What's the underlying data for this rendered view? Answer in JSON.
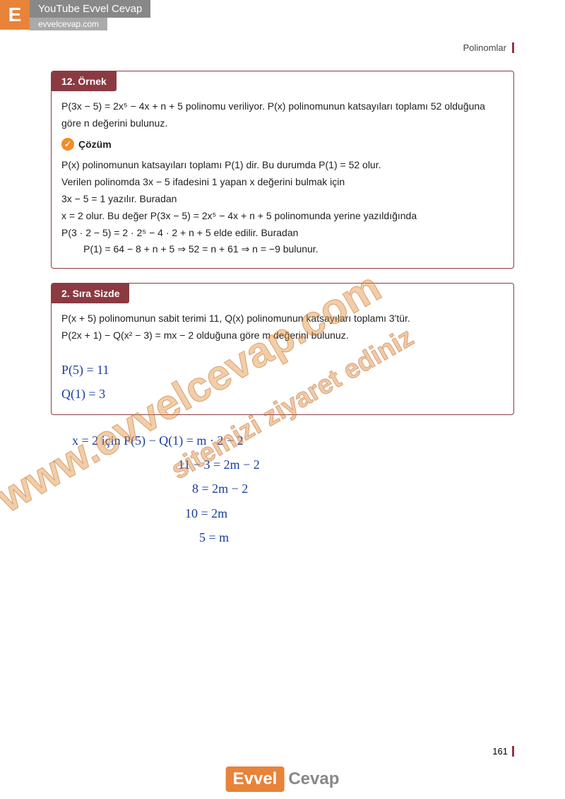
{
  "banner": {
    "logo": "E",
    "title": "YouTube Evvel Cevap",
    "site": "evvelcevap.com"
  },
  "header": {
    "chapter": "Polinomlar"
  },
  "example": {
    "label": "12. Örnek",
    "problem": "P(3x − 5) = 2x⁵ − 4x + n + 5 polinomu veriliyor. P(x) polinomunun katsayıları toplamı 52 olduğuna göre n değerini bulunuz.",
    "solution_label": "Çözüm",
    "lines": [
      "P(x) polinomunun katsayıları toplamı P(1) dir. Bu durumda P(1) = 52 olur.",
      "Verilen polinomda 3x − 5 ifadesini 1 yapan x değerini bulmak için",
      "3x − 5 = 1 yazılır. Buradan",
      "x = 2 olur. Bu değer P(3x − 5) = 2x⁵ − 4x + n + 5 polinomunda yerine yazıldığında",
      "P(3 · 2 − 5) = 2 · 2⁵ − 4 · 2 + n + 5 elde edilir. Buradan",
      "        P(1) = 64 − 8 + n + 5 ⇒ 52 = n + 61 ⇒ n = −9 bulunur."
    ]
  },
  "exercise": {
    "label": "2. Sıra Sizde",
    "problem1": "P(x + 5) polinomunun sabit terimi 11, Q(x) polinomunun katsayıları toplamı 3'tür.",
    "problem2": "P(2x + 1) − Q(x² − 3) = mx − 2 olduğuna göre m değerini bulunuz.",
    "hw_box": [
      "P(5) = 11",
      "Q(1) = 3"
    ],
    "hw_below": [
      {
        "text": "x = 2 için   P(5) − Q(1) = m · 2 − 2",
        "class": ""
      },
      {
        "text": "11 − 3 = 2m − 2",
        "class": "indent2"
      },
      {
        "text": "8 = 2m − 2",
        "class": "indent3"
      },
      {
        "text": "10 = 2m",
        "class": "indent4"
      },
      {
        "text": "5 = m",
        "class": "indent5"
      }
    ]
  },
  "watermarks": {
    "main": "www.evvelcevap.com",
    "sub": "sitemizi ziyaret ediniz"
  },
  "page_number": "161",
  "footer": {
    "part1": "Evvel",
    "part2": "Cevap"
  }
}
